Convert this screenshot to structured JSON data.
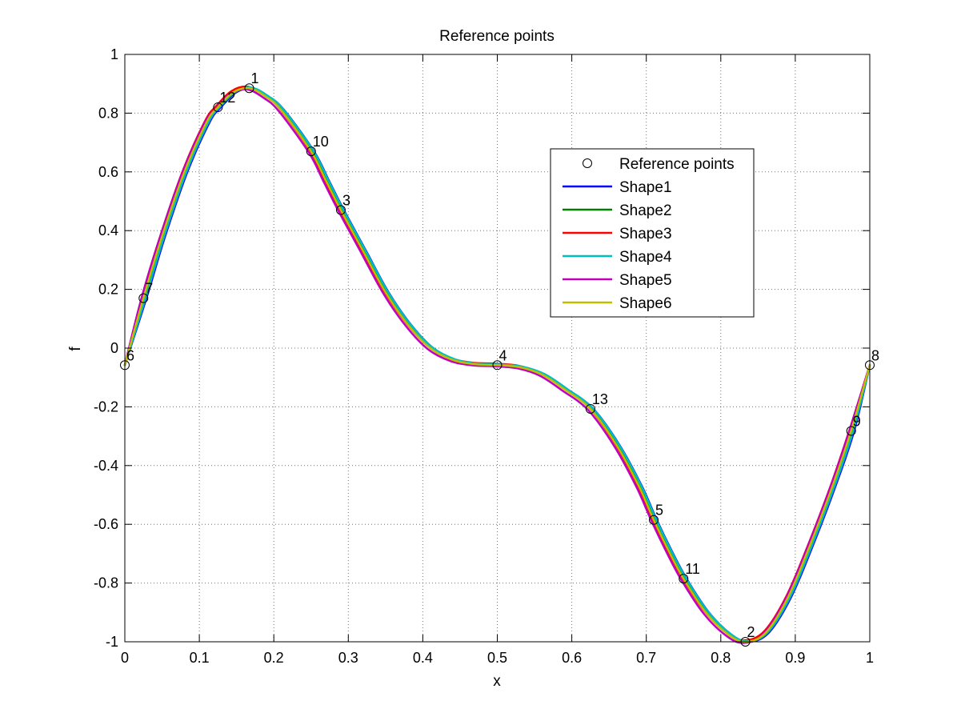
{
  "chart_data": {
    "type": "line",
    "title": "Reference points",
    "xlabel": "x",
    "ylabel": "f",
    "xlim": [
      0,
      1
    ],
    "ylim": [
      -1,
      1
    ],
    "xticks": [
      "0",
      "0.1",
      "0.2",
      "0.3",
      "0.4",
      "0.5",
      "0.6",
      "0.7",
      "0.8",
      "0.9",
      "1"
    ],
    "yticks": [
      "1",
      "0.8",
      "0.6",
      "0.4",
      "0.2",
      "0",
      "-0.2",
      "-0.4",
      "-0.6",
      "-0.8",
      "-1"
    ],
    "grid": true,
    "legend_position": "upper-right",
    "reference_points": {
      "name": "Reference points",
      "points": [
        {
          "label": "1",
          "x": 0.167,
          "y": 0.885
        },
        {
          "label": "2",
          "x": 0.833,
          "y": -1.0
        },
        {
          "label": "3",
          "x": 0.29,
          "y": 0.47
        },
        {
          "label": "4",
          "x": 0.5,
          "y": -0.058
        },
        {
          "label": "5",
          "x": 0.71,
          "y": -0.585
        },
        {
          "label": "6",
          "x": 0.0,
          "y": -0.058
        },
        {
          "label": "7",
          "x": 0.025,
          "y": 0.17
        },
        {
          "label": "8",
          "x": 1.0,
          "y": -0.058
        },
        {
          "label": "9",
          "x": 0.975,
          "y": -0.282
        },
        {
          "label": "10",
          "x": 0.25,
          "y": 0.67
        },
        {
          "label": "11",
          "x": 0.75,
          "y": -0.785
        },
        {
          "label": "12",
          "x": 0.125,
          "y": 0.82
        },
        {
          "label": "13",
          "x": 0.625,
          "y": -0.207
        }
      ]
    },
    "series": [
      {
        "name": "Shape1",
        "color": "#0000ff",
        "x_shift": 0.004,
        "y_shift": 0.0
      },
      {
        "name": "Shape2",
        "color": "#008000",
        "x_shift": 0.002,
        "y_shift": 0.0
      },
      {
        "name": "Shape3",
        "color": "#ff0000",
        "x_shift": -0.002,
        "y_shift": 0.005
      },
      {
        "name": "Shape4",
        "color": "#00bfbf",
        "x_shift": 0.003,
        "y_shift": 0.002
      },
      {
        "name": "Shape5",
        "color": "#bf00bf",
        "x_shift": -0.003,
        "y_shift": -0.004
      },
      {
        "name": "Shape6",
        "color": "#bfbf00",
        "x_shift": 0.0,
        "y_shift": 0.0
      }
    ],
    "curve_points": [
      [
        0.0,
        -0.058
      ],
      [
        0.025,
        0.17
      ],
      [
        0.05,
        0.38
      ],
      [
        0.08,
        0.6
      ],
      [
        0.11,
        0.77
      ],
      [
        0.125,
        0.82
      ],
      [
        0.145,
        0.87
      ],
      [
        0.167,
        0.885
      ],
      [
        0.19,
        0.855
      ],
      [
        0.21,
        0.81
      ],
      [
        0.25,
        0.67
      ],
      [
        0.27,
        0.57
      ],
      [
        0.29,
        0.47
      ],
      [
        0.32,
        0.33
      ],
      [
        0.35,
        0.19
      ],
      [
        0.38,
        0.08
      ],
      [
        0.41,
        0.0
      ],
      [
        0.44,
        -0.04
      ],
      [
        0.47,
        -0.055
      ],
      [
        0.5,
        -0.058
      ],
      [
        0.53,
        -0.065
      ],
      [
        0.56,
        -0.09
      ],
      [
        0.59,
        -0.14
      ],
      [
        0.625,
        -0.207
      ],
      [
        0.66,
        -0.33
      ],
      [
        0.69,
        -0.47
      ],
      [
        0.71,
        -0.585
      ],
      [
        0.73,
        -0.69
      ],
      [
        0.75,
        -0.785
      ],
      [
        0.78,
        -0.9
      ],
      [
        0.81,
        -0.975
      ],
      [
        0.833,
        -1.0
      ],
      [
        0.86,
        -0.97
      ],
      [
        0.89,
        -0.85
      ],
      [
        0.92,
        -0.67
      ],
      [
        0.95,
        -0.47
      ],
      [
        0.975,
        -0.282
      ],
      [
        1.0,
        -0.058
      ]
    ]
  }
}
